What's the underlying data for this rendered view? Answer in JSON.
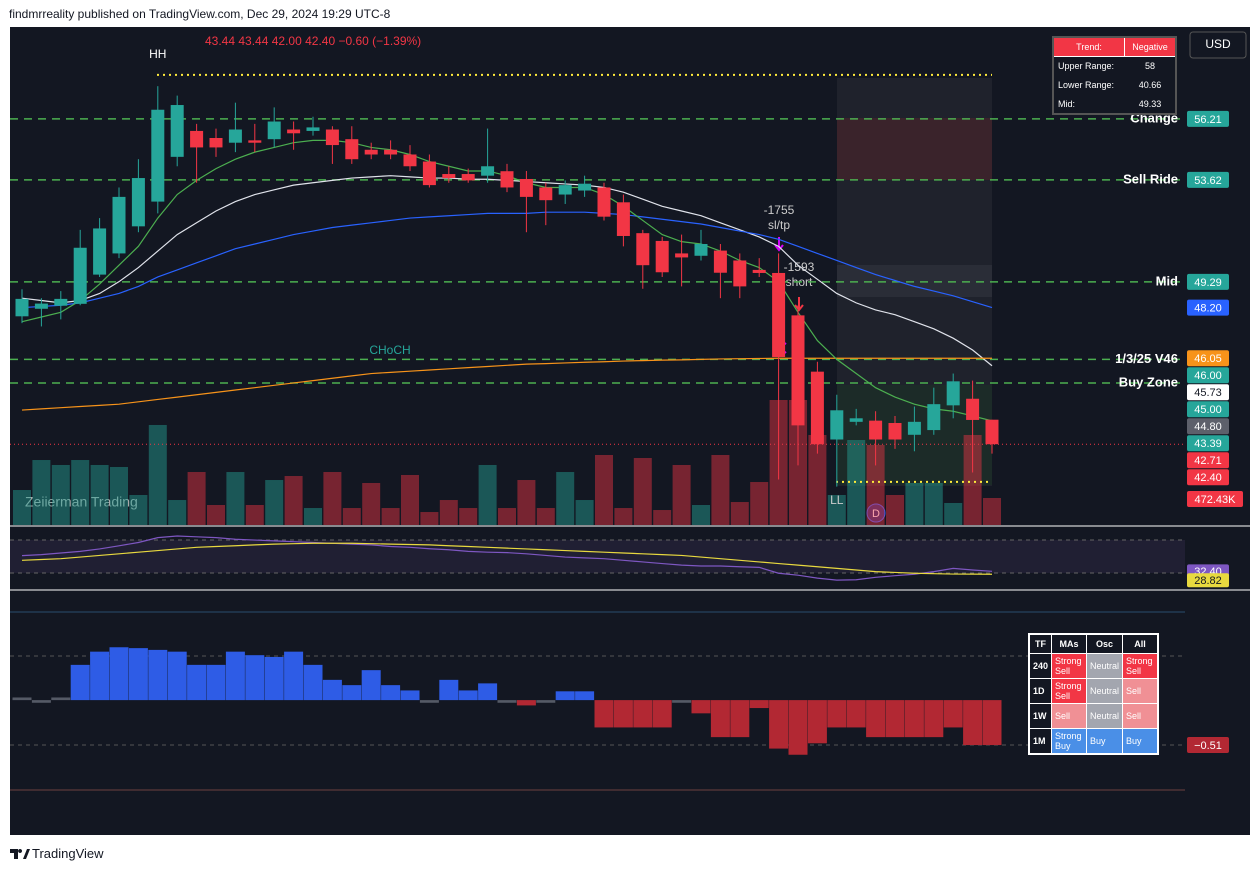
{
  "header": {
    "publisher": "findmrreality published on TradingView.com, Dec 29, 2024 19:29 UTC-8",
    "brand": "TradingView"
  },
  "chart_data": {
    "type": "candlestick",
    "ohlc_text": "43.44  43.44  42.00  42.40  −0.60 (−1.39%)",
    "currency": "USD",
    "watermark": "Zeiierman Trading",
    "up_color": "#26a69a",
    "down_color": "#f23645",
    "ylim": [
      38.97,
      60.07
    ],
    "open": [
      47.83,
      48.15,
      48.28,
      48.36,
      49.6,
      50.5,
      51.65,
      52.7,
      54.6,
      55.7,
      55.4,
      55.2,
      55.3,
      55.35,
      55.76,
      55.7,
      55.76,
      55.35,
      54.9,
      54.9,
      54.7,
      54.4,
      53.87,
      53.87,
      53.8,
      53.99,
      53.66,
      53.3,
      53.0,
      53.17,
      53.3,
      52.67,
      51.36,
      51.03,
      50.5,
      50.4,
      50.62,
      50.2,
      49.8,
      49.67,
      47.87,
      45.48,
      42.6,
      43.35,
      43.4,
      43.3,
      42.8,
      43.0,
      44.05,
      44.33,
      43.44
    ],
    "high": [
      48.98,
      48.6,
      48.9,
      51.5,
      52.0,
      53.3,
      54.5,
      57.6,
      57.2,
      56.0,
      55.8,
      56.9,
      56.0,
      56.7,
      56.1,
      56.3,
      55.9,
      55.9,
      55.2,
      55.3,
      55.1,
      54.7,
      54.2,
      54.1,
      55.8,
      54.3,
      54.0,
      53.5,
      53.6,
      53.8,
      53.5,
      53.0,
      51.5,
      51.2,
      51.3,
      51.5,
      50.9,
      50.5,
      50.3,
      50.5,
      48.3,
      45.9,
      44.5,
      43.9,
      43.8,
      43.6,
      44.0,
      44.8,
      45.4,
      45.1,
      43.44
    ],
    "low": [
      47.54,
      47.4,
      47.7,
      48.3,
      49.5,
      50.3,
      51.4,
      52.2,
      54.2,
      53.5,
      54.6,
      54.8,
      54.8,
      55.0,
      54.9,
      55.5,
      54.3,
      54.3,
      54.5,
      54.5,
      54.0,
      53.3,
      53.5,
      53.5,
      53.5,
      53.1,
      51.4,
      51.7,
      52.6,
      52.9,
      51.9,
      50.8,
      49.0,
      49.5,
      49.1,
      50.2,
      48.6,
      48.6,
      49.5,
      40.9,
      41.5,
      42.0,
      40.6,
      43.2,
      41.5,
      42.2,
      42.1,
      42.8,
      43.5,
      41.2,
      42.0
    ],
    "close": [
      48.57,
      48.37,
      48.57,
      50.74,
      51.56,
      52.9,
      53.7,
      56.6,
      56.8,
      55.0,
      55.0,
      55.76,
      55.2,
      56.1,
      55.6,
      55.85,
      55.1,
      54.5,
      54.7,
      54.7,
      54.2,
      53.4,
      53.7,
      53.6,
      54.2,
      53.3,
      52.9,
      52.76,
      53.4,
      53.46,
      52.06,
      51.24,
      50.0,
      49.7,
      50.33,
      50.9,
      49.68,
      49.1,
      49.67,
      46.1,
      43.2,
      42.4,
      43.84,
      43.5,
      42.6,
      42.6,
      43.35,
      44.1,
      45.07,
      43.43,
      42.4
    ],
    "volume": [
      612,
      1137,
      1050,
      1137,
      1050,
      1015,
      525,
      1750,
      437,
      927,
      350,
      927,
      350,
      787,
      857,
      297,
      927,
      297,
      735,
      297,
      875,
      227,
      437,
      297,
      1050,
      297,
      787,
      297,
      927,
      437,
      1225,
      297,
      1172,
      262,
      1050,
      350,
      1225,
      402,
      752,
      2187,
      2187,
      1575,
      525,
      1487,
      1400,
      525,
      735,
      735,
      385,
      1575,
      472.43
    ],
    "volume_last_label": "472.43K",
    "series": [
      {
        "color": "#e0e3eb",
        "values": [
          48.6,
          48.5,
          48.4,
          48.5,
          48.8,
          49.3,
          49.9,
          50.6,
          51.3,
          51.8,
          52.3,
          52.7,
          53.0,
          53.2,
          53.4,
          53.5,
          53.6,
          53.7,
          53.75,
          53.8,
          53.75,
          53.7,
          53.7,
          53.65,
          53.65,
          53.6,
          53.55,
          53.5,
          53.45,
          53.4,
          53.3,
          53.1,
          52.8,
          52.5,
          52.3,
          52.1,
          51.8,
          51.5,
          51.2,
          50.8,
          50.0,
          49.4,
          48.8,
          48.4,
          48.1,
          47.9,
          47.6,
          47.3,
          46.9,
          46.4,
          45.73
        ]
      },
      {
        "color": "#2962ff",
        "values": [
          48.2,
          48.25,
          48.3,
          48.4,
          48.6,
          48.8,
          49.1,
          49.5,
          49.8,
          50.1,
          50.4,
          50.7,
          50.9,
          51.1,
          51.3,
          51.45,
          51.6,
          51.7,
          51.8,
          51.9,
          52.0,
          52.05,
          52.1,
          52.15,
          52.2,
          52.2,
          52.2,
          52.25,
          52.25,
          52.25,
          52.2,
          52.15,
          52.05,
          51.95,
          51.85,
          51.75,
          51.6,
          51.45,
          51.3,
          51.1,
          50.8,
          50.5,
          50.2,
          49.9,
          49.6,
          49.35,
          49.1,
          48.9,
          48.7,
          48.45,
          48.2
        ]
      },
      {
        "color": "#f7931a",
        "values": [
          43.85,
          43.9,
          43.95,
          44.0,
          44.05,
          44.1,
          44.2,
          44.3,
          44.4,
          44.5,
          44.6,
          44.7,
          44.8,
          44.9,
          45.0,
          45.1,
          45.2,
          45.3,
          45.4,
          45.45,
          45.5,
          45.55,
          45.6,
          45.65,
          45.7,
          45.75,
          45.8,
          45.82,
          45.85,
          45.88,
          45.9,
          45.93,
          45.95,
          45.97,
          45.98,
          46.0,
          46.02,
          46.03,
          46.04,
          46.05,
          46.05,
          46.05,
          46.05,
          46.05,
          46.05,
          46.05,
          46.05,
          46.05,
          46.05,
          46.05,
          46.05
        ]
      },
      {
        "color": "#4caf50",
        "values": [
          47.6,
          47.8,
          48.0,
          48.5,
          49.2,
          50.0,
          50.8,
          52.0,
          53.0,
          53.6,
          54.1,
          54.5,
          54.8,
          55.0,
          55.2,
          55.3,
          55.3,
          55.2,
          55.0,
          54.9,
          54.7,
          54.4,
          54.2,
          54.0,
          54.0,
          53.8,
          53.5,
          53.3,
          53.3,
          53.3,
          53.0,
          52.5,
          51.9,
          51.3,
          51.0,
          50.9,
          50.6,
          50.2,
          49.9,
          49.3,
          48.0,
          46.8,
          46.0,
          45.4,
          44.8,
          44.4,
          44.1,
          43.9,
          43.8,
          43.6,
          43.39
        ]
      }
    ],
    "levels": [
      {
        "label": "Change",
        "value": 56.21
      },
      {
        "label": "Sell Ride",
        "value": 53.62
      },
      {
        "label": "Mid",
        "value": 49.29
      },
      {
        "label": "1/3/25 V46",
        "value": 46.0
      },
      {
        "label": "Buy Zone",
        "value": 45.0
      }
    ],
    "hh": {
      "label": "HH",
      "value": 58.08
    },
    "ll": {
      "label": "LL",
      "value": 40.8
    },
    "annotations": [
      "CHoCH",
      "-1755",
      "sl/tp",
      "-1593",
      "short",
      "D"
    ],
    "price_labels": [
      {
        "value": 56.21,
        "label": "56.21",
        "color": "#26a69a"
      },
      {
        "value": 53.62,
        "label": "53.62",
        "color": "#26a69a"
      },
      {
        "value": 49.29,
        "label": "49.29",
        "color": "#26a69a"
      },
      {
        "value": 48.2,
        "label": "48.20",
        "color": "#2962ff"
      },
      {
        "value": 46.05,
        "label": "46.05",
        "color": "#f7931a"
      },
      {
        "value": 46.0,
        "label": "46.00",
        "color": "#26a69a"
      },
      {
        "value": 45.73,
        "label": "45.73",
        "color": "#ffffff"
      },
      {
        "value": 45.0,
        "label": "45.00",
        "color": "#26a69a"
      },
      {
        "value": 44.8,
        "label": "44.80",
        "color": "#5d606b"
      },
      {
        "value": 43.39,
        "label": "43.39",
        "color": "#26a69a"
      },
      {
        "value": 42.71,
        "label": "42.71",
        "color": "#f23645"
      },
      {
        "value": 42.4,
        "label": "42.40",
        "color": "#f23645"
      }
    ],
    "trend_table": {
      "rows": [
        [
          "Trend:",
          "Negative"
        ],
        [
          "Upper Range:",
          "58"
        ],
        [
          "Lower Range:",
          "40.66"
        ],
        [
          "Mid:",
          "49.33"
        ]
      ]
    },
    "rsi": {
      "ylim": [
        11.8,
        79.7
      ],
      "values": [
        51.8,
        53,
        55,
        57,
        60,
        63.9,
        68,
        74,
        76,
        75,
        74,
        72,
        71,
        70,
        69,
        68,
        67,
        66,
        65,
        63,
        62,
        60.3,
        59,
        57,
        56,
        55.5,
        54,
        52,
        50,
        49,
        48,
        46,
        44,
        42,
        40,
        39,
        39,
        38,
        37.3,
        30,
        27.6,
        24,
        21.5,
        22,
        25,
        27,
        28.8,
        32,
        36,
        34,
        32.4
      ],
      "color": "#7e57c2",
      "ma_values": [
        46,
        47,
        48,
        50,
        52,
        54,
        56,
        58,
        60,
        62,
        63,
        64,
        65,
        66,
        66.5,
        67,
        67,
        67,
        66.5,
        66,
        65.5,
        65,
        64,
        63,
        62,
        61,
        60,
        59,
        58,
        57,
        56,
        55,
        54,
        53,
        52,
        50,
        48,
        46,
        44,
        42,
        40,
        38,
        36,
        34,
        32,
        31,
        30,
        29.5,
        29,
        28.9,
        28.82
      ],
      "ma_color": "#e8d93f",
      "labels": [
        {
          "value": 32.4,
          "label": "32.40"
        },
        {
          "value": 28.82,
          "label": "28.82"
        }
      ]
    },
    "osc": {
      "ylim": [
        -1.02,
        1.0
      ],
      "pos_color": "#2e5ce6",
      "neg_color": "#b22833",
      "values": [
        0.03,
        -0.03,
        0.03,
        0.4,
        0.55,
        0.6,
        0.59,
        0.57,
        0.55,
        0.4,
        0.4,
        0.55,
        0.51,
        0.49,
        0.55,
        0.4,
        0.23,
        0.17,
        0.34,
        0.17,
        0.11,
        -0.03,
        0.23,
        0.11,
        0.19,
        -0.03,
        -0.06,
        -0.03,
        0.1,
        0.1,
        -0.31,
        -0.31,
        -0.31,
        -0.31,
        -0.03,
        -0.15,
        -0.42,
        -0.42,
        -0.09,
        -0.55,
        -0.62,
        -0.49,
        -0.31,
        -0.31,
        -0.42,
        -0.42,
        -0.42,
        -0.42,
        -0.31,
        -0.51,
        -0.51
      ],
      "last_label": {
        "value": -0.51,
        "label": "−0.51"
      }
    },
    "signal_table": {
      "header": [
        "TF",
        "MAs",
        "Osc",
        "All"
      ],
      "rows": [
        [
          "240",
          "Strong Sell",
          "Neutral",
          "Strong Sell"
        ],
        [
          "1D",
          "Strong Sell",
          "Neutral",
          "Sell"
        ],
        [
          "1W",
          "Sell",
          "Neutral",
          "Sell"
        ],
        [
          "1M",
          "Strong Buy",
          "Buy",
          "Buy"
        ]
      ]
    }
  }
}
